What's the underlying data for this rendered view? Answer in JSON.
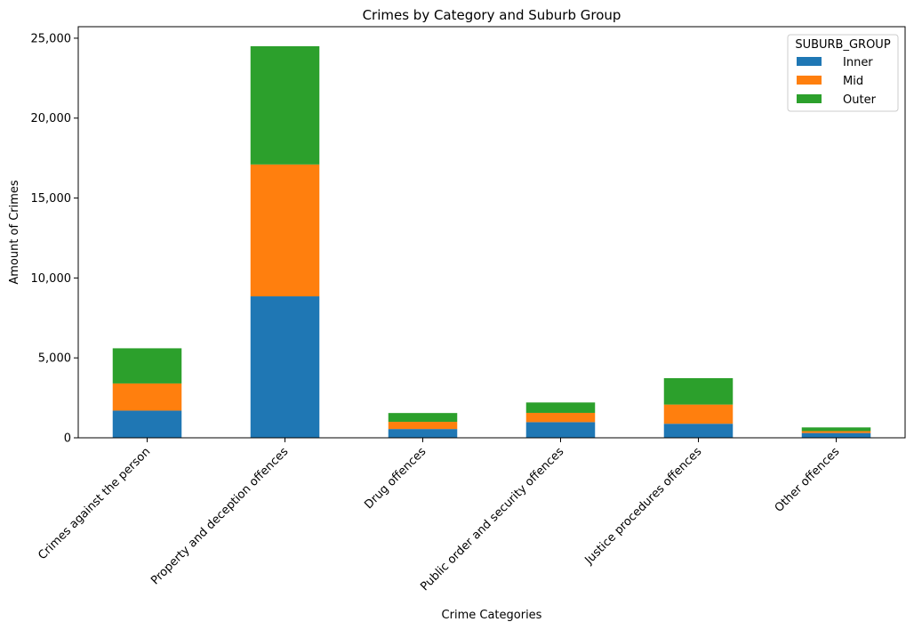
{
  "chart_data": {
    "type": "bar",
    "stacked": true,
    "title": "Crimes by Category and Suburb Group",
    "xlabel": "Crime Categories",
    "ylabel": "Amount of Crimes",
    "categories": [
      "Crimes against the person",
      "Property and deception offences",
      "Drug offences",
      "Public order and security offences",
      "Justice procedures offences",
      "Other offences"
    ],
    "series": [
      {
        "name": "Inner",
        "color": "#1f77b4",
        "values": [
          1700,
          8850,
          550,
          980,
          880,
          300
        ]
      },
      {
        "name": "Mid",
        "color": "#ff7f0e",
        "values": [
          1700,
          8250,
          450,
          580,
          1200,
          120
        ]
      },
      {
        "name": "Outer",
        "color": "#2ca02c",
        "values": [
          2200,
          7400,
          550,
          650,
          1650,
          230
        ]
      }
    ],
    "ylim": [
      0,
      25720
    ],
    "yticks": [
      0,
      5000,
      10000,
      15000,
      20000,
      25000
    ],
    "ytick_labels": [
      "0",
      "5,000",
      "10,000",
      "15,000",
      "20,000",
      "25,000"
    ],
    "legend": {
      "title": "SUBURB_GROUP",
      "placement": "top-right"
    },
    "grid": false
  }
}
